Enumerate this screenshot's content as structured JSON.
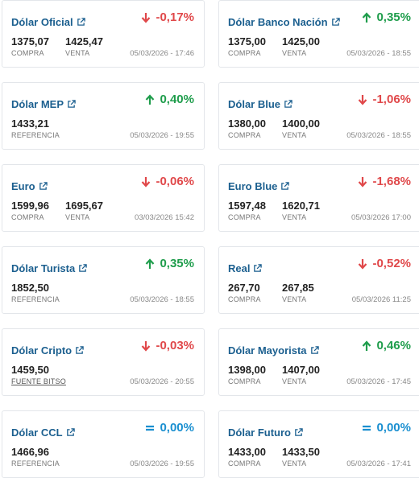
{
  "cards": [
    {
      "title": "Dólar Oficial",
      "change": "-0,17%",
      "direction": "down",
      "v1": "1375,07",
      "l1": "COMPRA",
      "v2": "1425,47",
      "l2": "VENTA",
      "date": "05/03/2026 - 17:46"
    },
    {
      "title": "Dólar Banco Nación",
      "change": "0,35%",
      "direction": "up",
      "v1": "1375,00",
      "l1": "COMPRA",
      "v2": "1425,00",
      "l2": "VENTA",
      "date": "05/03/2026 - 18:55"
    },
    {
      "title": "Dólar MEP",
      "change": "0,40%",
      "direction": "up",
      "v1": "1433,21",
      "l1": "REFERENCIA",
      "v2": "",
      "l2": "",
      "date": "05/03/2026 - 19:55"
    },
    {
      "title": "Dólar Blue",
      "change": "-1,06%",
      "direction": "down",
      "v1": "1380,00",
      "l1": "COMPRA",
      "v2": "1400,00",
      "l2": "VENTA",
      "date": "05/03/2026 - 18:55"
    },
    {
      "title": "Euro",
      "change": "-0,06%",
      "direction": "down",
      "v1": "1599,96",
      "l1": "COMPRA",
      "v2": "1695,67",
      "l2": "VENTA",
      "date": "03/03/2026 15:42"
    },
    {
      "title": "Euro Blue",
      "change": "-1,68%",
      "direction": "down",
      "v1": "1597,48",
      "l1": "COMPRA",
      "v2": "1620,71",
      "l2": "VENTA",
      "date": "05/03/2026 17:00"
    },
    {
      "title": "Dólar Turista",
      "change": "0,35%",
      "direction": "up",
      "v1": "1852,50",
      "l1": "REFERENCIA",
      "v2": "",
      "l2": "",
      "date": "05/03/2026 - 18:55"
    },
    {
      "title": "Real",
      "change": "-0,52%",
      "direction": "down",
      "v1": "267,70",
      "l1": "COMPRA",
      "v2": "267,85",
      "l2": "VENTA",
      "date": "05/03/2026 11:25"
    },
    {
      "title": "Dólar Cripto",
      "change": "-0,03%",
      "direction": "down",
      "v1": "1459,50",
      "l1": "FUENTE BITSO",
      "v2": "",
      "l2": "",
      "date": "05/03/2026 - 20:55"
    },
    {
      "title": "Dólar Mayorista",
      "change": "0,46%",
      "direction": "up",
      "v1": "1398,00",
      "l1": "COMPRA",
      "v2": "1407,00",
      "l2": "VENTA",
      "date": "05/03/2026 - 17:45"
    },
    {
      "title": "Dólar CCL",
      "change": "0,00%",
      "direction": "flat",
      "v1": "1466,96",
      "l1": "REFERENCIA",
      "v2": "",
      "l2": "",
      "date": "05/03/2026 - 19:55"
    },
    {
      "title": "Dólar Futuro",
      "change": "0,00%",
      "direction": "flat",
      "v1": "1433,00",
      "l1": "COMPRA",
      "v2": "1433,50",
      "l2": "VENTA",
      "date": "05/03/2026 - 17:41"
    }
  ],
  "colors": {
    "down": "#e0484a",
    "up": "#1f9d4c",
    "flat": "#1a8fd0",
    "title": "#1b5f8f"
  },
  "icons": {
    "external": "external-link-icon",
    "down": "arrow-down-icon",
    "up": "arrow-up-icon",
    "flat": "equals-icon"
  }
}
